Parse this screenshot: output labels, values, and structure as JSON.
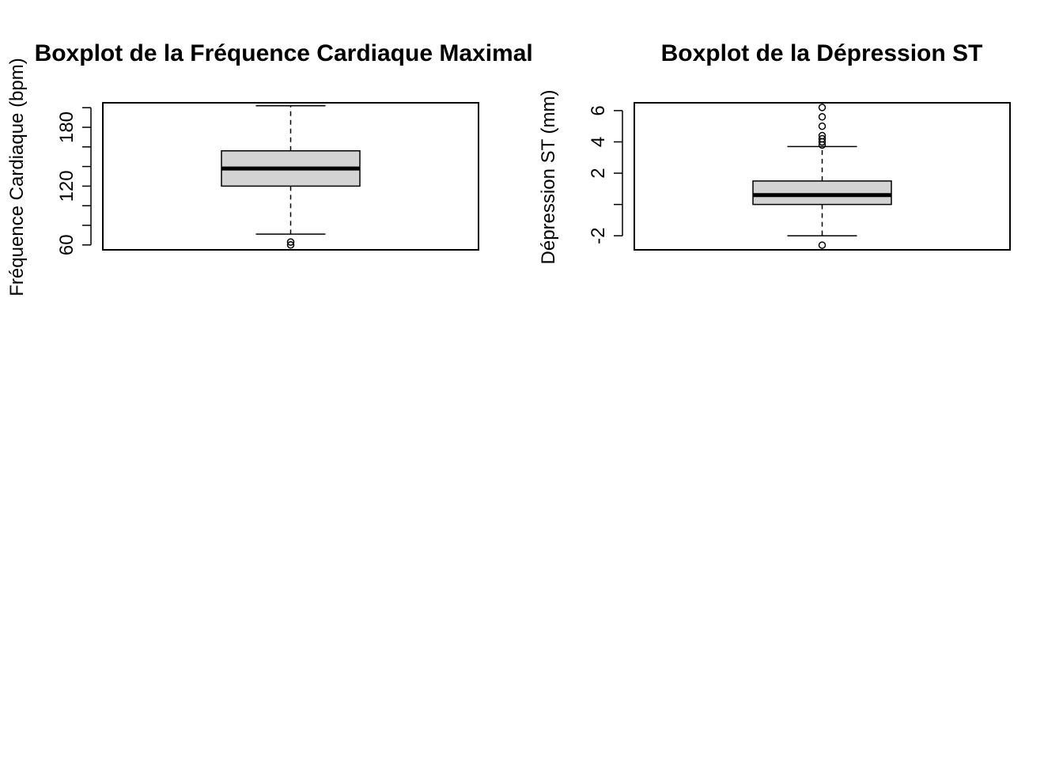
{
  "chart_data": [
    {
      "type": "boxplot",
      "title": "Boxplot de la Fréquence Cardiaque Maximale",
      "ylabel": "Fréquence Cardiaque (bpm)",
      "ylim": [
        55,
        205
      ],
      "ticks": [
        60,
        80,
        100,
        120,
        140,
        160,
        180,
        200
      ],
      "tick_labels": [
        "60",
        "",
        "",
        "120",
        "",
        "",
        "180",
        ""
      ],
      "box": {
        "whisker_low": 71,
        "q1": 120,
        "median": 138,
        "q3": 156,
        "whisker_high": 202
      },
      "outliers": [
        60,
        63
      ]
    },
    {
      "type": "boxplot",
      "title": "Boxplot de la Dépression ST",
      "ylabel": "Dépression ST (mm)",
      "ylim": [
        -2.9,
        6.5
      ],
      "ticks": [
        -2,
        0,
        2,
        4,
        6
      ],
      "tick_labels": [
        "-2",
        "",
        "2",
        "4",
        "6"
      ],
      "box": {
        "whisker_low": -2,
        "q1": 0,
        "median": 0.6,
        "q3": 1.5,
        "whisker_high": 3.7
      },
      "outliers": [
        -2.6,
        3.8,
        4.0,
        4.2,
        4.4,
        5.0,
        5.6,
        6.2
      ]
    }
  ]
}
